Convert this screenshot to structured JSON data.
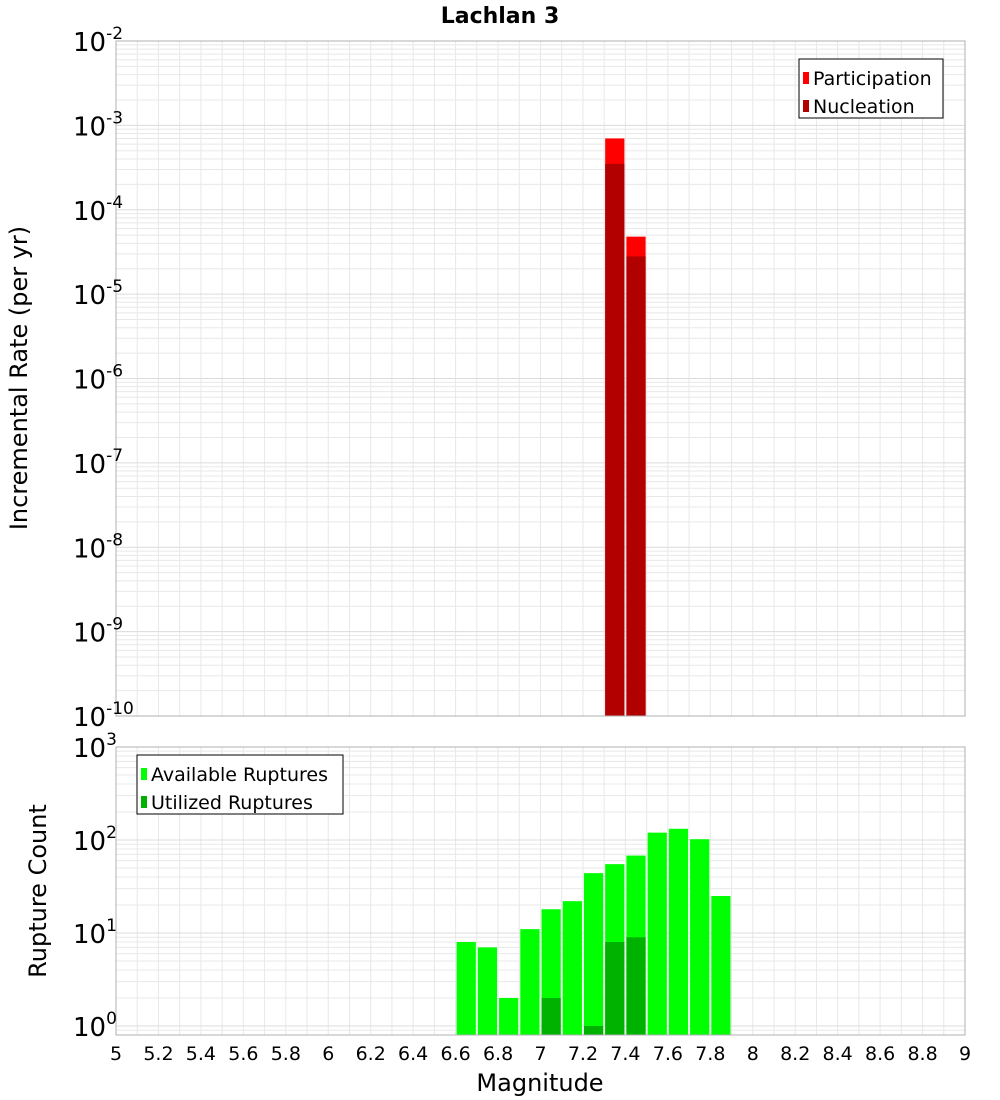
{
  "title": "Lachlan 3",
  "xlabel": "Magnitude",
  "x_ticks": [
    "5",
    "5.2",
    "5.4",
    "5.6",
    "5.8",
    "6",
    "6.2",
    "6.4",
    "6.6",
    "6.8",
    "7",
    "7.2",
    "7.4",
    "7.6",
    "7.8",
    "8",
    "8.2",
    "8.4",
    "8.6",
    "8.8",
    "9"
  ],
  "colors": {
    "participation": "#ff0000",
    "nucleation": "#b20000",
    "available": "#00ff00",
    "utilized": "#00b200",
    "grid": "#e8e8e8",
    "frame": "#b0b0b0"
  },
  "chart_data": [
    {
      "type": "bar",
      "ylabel": "Incremental Rate (per yr)",
      "yscale": "log",
      "ylim": [
        1e-10,
        0.01
      ],
      "xlim": [
        5,
        9
      ],
      "bin_width": 0.1,
      "y_ticks": [
        {
          "base": "10",
          "exp": "-10"
        },
        {
          "base": "10",
          "exp": "-9"
        },
        {
          "base": "10",
          "exp": "-8"
        },
        {
          "base": "10",
          "exp": "-7"
        },
        {
          "base": "10",
          "exp": "-6"
        },
        {
          "base": "10",
          "exp": "-5"
        },
        {
          "base": "10",
          "exp": "-4"
        },
        {
          "base": "10",
          "exp": "-3"
        },
        {
          "base": "10",
          "exp": "-2"
        }
      ],
      "legend": {
        "position": "top-right",
        "entries": [
          "Participation",
          "Nucleation"
        ]
      },
      "series": [
        {
          "name": "Participation",
          "x": [
            7.35,
            7.45
          ],
          "values": [
            0.0007,
            4.8e-05
          ]
        },
        {
          "name": "Nucleation",
          "x": [
            7.35,
            7.45
          ],
          "values": [
            0.00035,
            2.8e-05
          ]
        }
      ]
    },
    {
      "type": "bar",
      "ylabel": "Rupture Count",
      "yscale": "log",
      "ylim": [
        0.8,
        1000
      ],
      "xlim": [
        5,
        9
      ],
      "bin_width": 0.1,
      "y_ticks": [
        {
          "base": "10",
          "exp": "0"
        },
        {
          "base": "10",
          "exp": "1"
        },
        {
          "base": "10",
          "exp": "2"
        },
        {
          "base": "10",
          "exp": "3"
        }
      ],
      "legend": {
        "position": "top-left",
        "entries": [
          "Available Ruptures",
          "Utilized Ruptures"
        ]
      },
      "series": [
        {
          "name": "Available Ruptures",
          "x": [
            6.65,
            6.75,
            6.85,
            6.95,
            7.05,
            7.15,
            7.25,
            7.35,
            7.45,
            7.55,
            7.65,
            7.75,
            7.85
          ],
          "values": [
            8,
            7,
            2,
            11,
            18,
            22,
            44,
            55,
            68,
            120,
            132,
            102,
            25
          ]
        },
        {
          "name": "Utilized Ruptures",
          "x": [
            7.05,
            7.25,
            7.35,
            7.45
          ],
          "values": [
            2,
            1,
            8,
            9
          ]
        }
      ]
    }
  ]
}
